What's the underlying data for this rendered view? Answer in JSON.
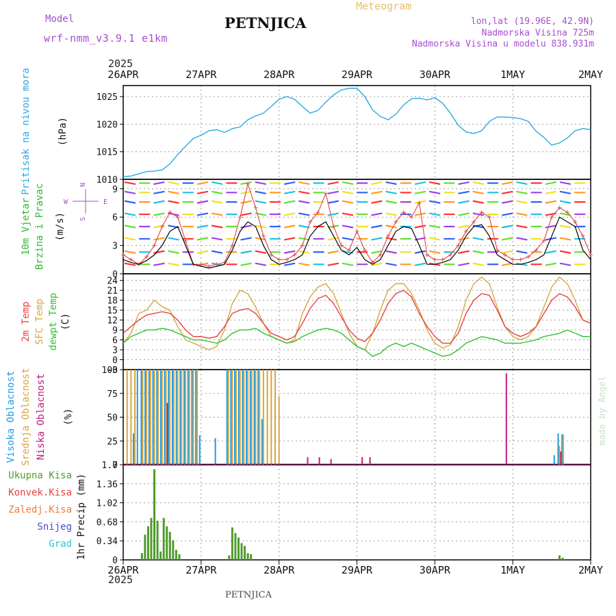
{
  "header": {
    "model_label": "Model",
    "model_name": "wrf-nmm_v3.9.1 e1km",
    "title": "PETNJICA",
    "meteogram_label": "Meteogram",
    "coords": "lon,lat (19.96E, 42.9N)",
    "altitude": "Nadmorska Visina 725m",
    "model_altitude": "Nadmorska Visina u modelu 838.931m",
    "footer_title": "PETNJICA",
    "watermark": "made by Angel"
  },
  "colors": {
    "pressure": "#29a9e3",
    "temp2m": "#e8413c",
    "sfc_temp": "#d6a63f",
    "dewpt": "#2fc02f",
    "high_cloud": "#1e9be0",
    "mid_cloud": "#d9a43a",
    "low_cloud": "#c0187e",
    "precip": "#4f9a2c",
    "purple": "#a64dd1"
  },
  "chart_data": [
    {
      "type": "line",
      "panel": "pressure",
      "xlabel_top": "2025",
      "xlabel_bottom": "2025",
      "x_ticks": [
        "26APR",
        "27APR",
        "28APR",
        "29APR",
        "30APR",
        "1MAY",
        "2MAY"
      ],
      "ylabel": "Pritisak na nivou mora",
      "unit": "(hPa)",
      "ylim": [
        1010,
        1027
      ],
      "y_ticks": [
        "1010",
        "1015",
        "1020",
        "1025"
      ],
      "x": [
        0,
        0.1,
        0.2,
        0.3,
        0.4,
        0.5,
        0.6,
        0.7,
        0.8,
        0.9,
        1.0,
        1.1,
        1.2,
        1.3,
        1.4,
        1.5,
        1.6,
        1.7,
        1.8,
        1.9,
        2.0,
        2.1,
        2.2,
        2.3,
        2.4,
        2.5,
        2.6,
        2.7,
        2.8,
        2.9,
        3.0,
        3.1,
        3.2,
        3.3,
        3.4,
        3.5,
        3.6,
        3.7,
        3.8,
        3.9,
        4.0,
        4.1,
        4.2,
        4.3,
        4.4,
        4.5,
        4.6,
        4.7,
        4.8,
        4.9,
        5.0,
        5.1,
        5.2,
        5.3,
        5.4,
        5.5,
        5.6,
        5.7,
        5.8,
        5.9,
        6.0
      ],
      "values": [
        1010.5,
        1010.6,
        1011,
        1011.4,
        1011.5,
        1011.7,
        1012.8,
        1014.5,
        1016,
        1017.4,
        1018,
        1018.8,
        1019,
        1018.5,
        1019.2,
        1019.5,
        1020.8,
        1021.5,
        1022,
        1023.2,
        1024.5,
        1025,
        1024.5,
        1023.2,
        1022,
        1022.5,
        1024,
        1025.3,
        1026.2,
        1026.5,
        1026.5,
        1025,
        1022.6,
        1021.4,
        1020.8,
        1021.8,
        1023.5,
        1024.6,
        1024.7,
        1024.4,
        1024.8,
        1023.8,
        1022,
        1019.8,
        1018.6,
        1018.3,
        1018.8,
        1020.5,
        1021.3,
        1021.3,
        1021.2,
        1021,
        1020.5,
        1018.7,
        1017.6,
        1016.2,
        1016.6,
        1017.5,
        1018.8,
        1019.2,
        1019
      ],
      "series": [
        {
          "name": "Pritisak na nivou mora"
        }
      ]
    },
    {
      "type": "line",
      "panel": "wind",
      "ylabel_1": "10m Vjetar",
      "ylabel_2": "Brzina i Pravac",
      "unit": "(m/s)",
      "ylim": [
        0,
        10
      ],
      "y_ticks": [
        "0",
        "3",
        "6",
        "9"
      ],
      "compass_w": "W",
      "compass_e": "E",
      "compass_n": "N",
      "compass_s": "S",
      "x": [
        0,
        0.1,
        0.2,
        0.3,
        0.4,
        0.5,
        0.6,
        0.7,
        0.8,
        0.9,
        1.0,
        1.1,
        1.2,
        1.3,
        1.4,
        1.5,
        1.6,
        1.7,
        1.8,
        1.9,
        2.0,
        2.1,
        2.2,
        2.3,
        2.4,
        2.5,
        2.6,
        2.7,
        2.8,
        2.9,
        3.0,
        3.1,
        3.2,
        3.3,
        3.4,
        3.5,
        3.6,
        3.7,
        3.8,
        3.9,
        4.0,
        4.1,
        4.2,
        4.3,
        4.4,
        4.5,
        4.6,
        4.7,
        4.8,
        4.9,
        5.0,
        5.1,
        5.2,
        5.3,
        5.4,
        5.5,
        5.6,
        5.7,
        5.8,
        5.9,
        6.0
      ],
      "values": [
        1.5,
        1.2,
        1.0,
        1.4,
        2.0,
        3.0,
        4.5,
        5.0,
        3.0,
        1.0,
        0.8,
        0.6,
        0.8,
        1.0,
        2.5,
        4.5,
        5.5,
        5.0,
        3.0,
        1.5,
        1.0,
        1.2,
        1.5,
        2.0,
        4.0,
        5.0,
        5.5,
        4.0,
        2.5,
        2.0,
        2.8,
        1.5,
        1.0,
        1.5,
        3.0,
        4.5,
        5.0,
        4.8,
        3.0,
        1.0,
        1.0,
        1.2,
        1.5,
        2.5,
        4.0,
        5.0,
        5.2,
        4.0,
        2.0,
        1.5,
        1.0,
        1.0,
        1.2,
        1.5,
        2.0,
        4.0,
        6.0,
        5.5,
        5.0,
        2.5,
        1.5
      ],
      "gust": [
        2.0,
        1.5,
        1.0,
        1.8,
        3.0,
        5.0,
        6.5,
        6.0,
        3.5,
        1.0,
        1.0,
        0.8,
        1.0,
        1.2,
        3.0,
        6.0,
        9.5,
        7.0,
        4.0,
        2.0,
        1.5,
        1.5,
        2.0,
        3.0,
        5.5,
        6.5,
        8.5,
        5.0,
        3.0,
        2.5,
        4.5,
        2.5,
        1.2,
        2.0,
        4.0,
        5.5,
        6.5,
        6.0,
        7.5,
        2.0,
        1.5,
        1.5,
        2.0,
        3.0,
        4.5,
        5.5,
        6.5,
        6.0,
        2.5,
        2.0,
        1.5,
        1.5,
        1.8,
        2.5,
        3.5,
        6.0,
        7.0,
        6.5,
        5.5,
        4.0,
        2.0
      ],
      "series": [
        {
          "name": "10m Vjetar"
        }
      ]
    },
    {
      "type": "line",
      "panel": "temperature",
      "ylabel_1": "2m Temp",
      "ylabel_2": "SFC Temp",
      "ylabel_3": "dewpt Temp",
      "unit": "(C)",
      "ylim": [
        -3,
        26
      ],
      "y_ticks": [
        "-3",
        "0",
        "3",
        "6",
        "9",
        "12",
        "15",
        "18",
        "21",
        "24"
      ],
      "x": [
        0,
        0.1,
        0.2,
        0.3,
        0.4,
        0.5,
        0.6,
        0.7,
        0.8,
        0.9,
        1.0,
        1.1,
        1.2,
        1.3,
        1.4,
        1.5,
        1.6,
        1.7,
        1.8,
        1.9,
        2.0,
        2.1,
        2.2,
        2.3,
        2.4,
        2.5,
        2.6,
        2.7,
        2.8,
        2.9,
        3.0,
        3.1,
        3.2,
        3.3,
        3.4,
        3.5,
        3.6,
        3.7,
        3.8,
        3.9,
        4.0,
        4.1,
        4.2,
        4.3,
        4.4,
        4.5,
        4.6,
        4.7,
        4.8,
        4.9,
        5.0,
        5.1,
        5.2,
        5.3,
        5.4,
        5.5,
        5.6,
        5.7,
        5.8,
        5.9,
        6.0
      ],
      "series": [
        {
          "name": "2m Temp",
          "values": [
            8,
            10,
            12,
            13.5,
            14,
            14.5,
            14,
            12,
            9,
            7,
            7,
            6.5,
            7,
            10,
            14,
            15,
            15.5,
            14,
            11,
            8,
            7,
            6,
            7,
            11,
            15.5,
            18.5,
            19.5,
            17,
            13,
            9,
            6.5,
            5.5,
            8,
            12,
            17,
            20,
            21,
            19,
            14,
            10,
            7,
            5,
            5,
            8,
            14,
            18,
            20,
            19.5,
            15,
            10,
            8,
            7,
            8,
            10,
            14,
            18,
            20,
            19,
            16,
            12,
            11
          ],
          "sfc_values": [
            5,
            8,
            14,
            15,
            18,
            16,
            15,
            10,
            6,
            5,
            4,
            3,
            4,
            9,
            17,
            21,
            20,
            16,
            11,
            7,
            6,
            5,
            6,
            14,
            19,
            22,
            23,
            20,
            14,
            8,
            4,
            3,
            8,
            15,
            21,
            23,
            23,
            20,
            15,
            9,
            5,
            3.5,
            4.5,
            10,
            18,
            23,
            25,
            23,
            16,
            10,
            7,
            6,
            7,
            10,
            16,
            22,
            25,
            23,
            18,
            12,
            11
          ]
        },
        {
          "name": "dewpt Temp",
          "values": [
            5,
            7,
            8,
            9,
            9,
            9.5,
            9,
            8,
            7,
            6,
            6,
            5.5,
            5,
            6,
            8,
            9,
            9,
            9.5,
            8,
            7,
            6,
            5,
            5.5,
            7,
            8,
            9,
            9.5,
            9,
            8,
            6,
            4,
            3,
            1,
            2,
            4,
            5,
            4,
            5,
            4,
            3,
            2,
            1,
            1.5,
            3,
            5,
            6,
            7,
            6.5,
            6,
            5,
            5,
            5,
            5.5,
            6,
            7,
            7.5,
            8,
            9,
            8,
            7,
            7
          ]
        }
      ]
    },
    {
      "type": "bar",
      "panel": "clouds",
      "ylabel_1": "Visoka Oblacnost",
      "ylabel_2": "Srednja Oblacnost",
      "ylabel_3": "Niska Oblacnost",
      "unit": "(%)",
      "ylim": [
        0,
        100
      ],
      "y_ticks": [
        "0",
        "25",
        "50",
        "75",
        "100"
      ],
      "x": [
        0.05,
        0.1,
        0.15,
        0.2,
        0.25,
        0.3,
        0.35,
        0.4,
        0.45,
        0.5,
        0.55,
        0.6,
        0.65,
        0.7,
        0.75,
        0.8,
        0.85,
        0.9,
        0.95,
        1.0,
        1.05,
        1.2,
        1.35,
        1.4,
        1.45,
        1.5,
        1.55,
        1.6,
        1.65,
        1.7,
        1.75,
        1.8,
        1.85,
        1.9,
        1.95,
        2.0,
        2.35,
        2.5,
        2.65,
        3.05,
        3.15,
        4.9,
        5.55,
        5.6,
        5.65
      ],
      "series": [
        {
          "name": "Visoka Oblacnost",
          "values": [
            0,
            0,
            33,
            100,
            100,
            100,
            100,
            100,
            100,
            100,
            100,
            100,
            100,
            100,
            100,
            100,
            100,
            100,
            100,
            31,
            0,
            28,
            100,
            100,
            100,
            100,
            100,
            100,
            100,
            100,
            100,
            48,
            0,
            0,
            0,
            0,
            0,
            0,
            0,
            0,
            0,
            0,
            10,
            33,
            32
          ]
        },
        {
          "name": "Srednja Oblacnost",
          "values": [
            100,
            100,
            100,
            0,
            100,
            100,
            100,
            100,
            100,
            100,
            100,
            100,
            100,
            100,
            100,
            100,
            100,
            100,
            100,
            0,
            0,
            0,
            100,
            100,
            100,
            100,
            100,
            100,
            100,
            100,
            100,
            100,
            100,
            100,
            100,
            72,
            0,
            0,
            0,
            0,
            0,
            0,
            0,
            20,
            32
          ]
        },
        {
          "name": "Niska Oblacnost",
          "values": [
            0,
            0,
            0,
            0,
            0,
            0,
            0,
            0,
            0,
            0,
            65,
            0,
            0,
            0,
            0,
            0,
            0,
            0,
            0,
            0,
            0,
            0,
            0,
            0,
            0,
            0,
            0,
            0,
            0,
            0,
            0,
            0,
            0,
            0,
            0,
            0,
            8,
            8,
            6,
            8,
            8,
            96,
            0,
            14,
            0
          ]
        }
      ]
    },
    {
      "type": "bar",
      "panel": "precip",
      "ylabel": "1hr Precip (mm)",
      "legend": [
        "Ukupna Kisa",
        "Konvek.Kisa",
        "Zaledj.Kisa",
        "Snijeg",
        "Grad"
      ],
      "legend_colors": [
        "#4f9a2c",
        "#e8413c",
        "#f07a3a",
        "#4747d6",
        "#2bc8c8"
      ],
      "ylim": [
        0,
        1.7
      ],
      "y_ticks": [
        "0",
        "0.34",
        "0.68",
        "1.02",
        "1.36",
        "1.7"
      ],
      "x": [
        0.24,
        0.28,
        0.32,
        0.36,
        0.4,
        0.44,
        0.48,
        0.52,
        0.56,
        0.6,
        0.64,
        0.68,
        0.72,
        1.36,
        1.4,
        1.44,
        1.48,
        1.52,
        1.56,
        1.6,
        1.64,
        5.6,
        5.64
      ],
      "values": [
        0.12,
        0.45,
        0.6,
        0.75,
        1.62,
        0.7,
        0.15,
        0.75,
        0.6,
        0.5,
        0.35,
        0.18,
        0.1,
        0.08,
        0.58,
        0.48,
        0.4,
        0.3,
        0.25,
        0.12,
        0.1,
        0.08,
        0.04
      ]
    }
  ]
}
